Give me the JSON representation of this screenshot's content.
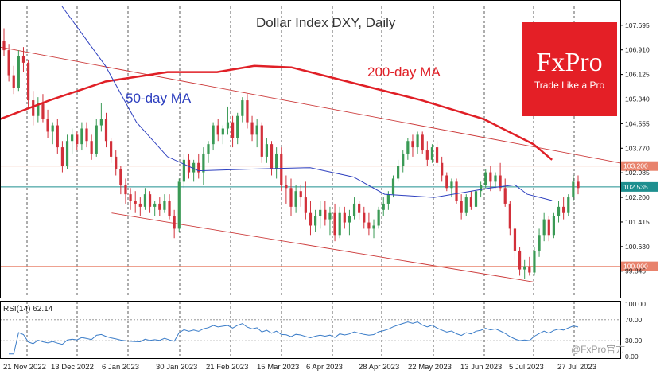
{
  "chart_data": [
    {
      "type": "candlestick",
      "title": "Dollar Index DXY, Daily",
      "ylim": [
        99.0,
        108.3
      ],
      "y_ticks": [
        "107.695",
        "106.910",
        "106.125",
        "105.340",
        "104.555",
        "103.770",
        "102.985",
        "102.200",
        "101.415",
        "100.630",
        "99.845"
      ],
      "x_ticks": [
        "21 Nov 2022",
        "13 Dec 2022",
        "6 Jan 2023",
        "30 Jan 2023",
        "21 Feb 2023",
        "15 Mar 2023",
        "6 Apr 2023",
        "28 Apr 2023",
        "22 May 2023",
        "13 Jun 2023",
        "5 Jul 2023",
        "27 Jul 2023"
      ],
      "candles": [
        [
          107.2,
          107.6,
          106.7,
          106.9
        ],
        [
          106.9,
          107.1,
          105.9,
          106.1
        ],
        [
          106.1,
          106.4,
          105.5,
          105.7
        ],
        [
          105.7,
          106.9,
          105.6,
          106.7
        ],
        [
          106.7,
          107.0,
          106.2,
          106.5
        ],
        [
          106.5,
          106.6,
          105.1,
          105.3
        ],
        [
          105.3,
          105.6,
          104.5,
          104.8
        ],
        [
          104.8,
          105.4,
          104.6,
          105.2
        ],
        [
          105.2,
          105.5,
          104.6,
          104.7
        ],
        [
          104.7,
          105.0,
          104.1,
          104.3
        ],
        [
          104.3,
          104.6,
          103.9,
          104.5
        ],
        [
          104.5,
          104.7,
          103.6,
          103.8
        ],
        [
          103.8,
          104.0,
          103.0,
          103.2
        ],
        [
          103.2,
          104.2,
          103.1,
          104.0
        ],
        [
          104.0,
          104.4,
          103.6,
          104.2
        ],
        [
          104.2,
          104.3,
          103.7,
          103.9
        ],
        [
          103.9,
          104.6,
          103.7,
          104.4
        ],
        [
          104.4,
          104.6,
          103.8,
          104.0
        ],
        [
          104.0,
          104.2,
          103.4,
          103.6
        ],
        [
          103.6,
          104.7,
          103.5,
          104.5
        ],
        [
          104.5,
          105.2,
          104.3,
          104.7
        ],
        [
          104.7,
          104.9,
          103.8,
          104.0
        ],
        [
          104.0,
          104.1,
          103.3,
          103.5
        ],
        [
          103.5,
          103.7,
          102.9,
          103.1
        ],
        [
          103.1,
          103.2,
          102.3,
          102.6
        ],
        [
          102.6,
          102.8,
          102.0,
          102.3
        ],
        [
          102.3,
          102.5,
          101.8,
          102.1
        ],
        [
          102.1,
          102.4,
          101.7,
          102.0
        ],
        [
          102.0,
          102.2,
          101.6,
          101.9
        ],
        [
          101.9,
          102.5,
          101.8,
          102.3
        ],
        [
          102.3,
          102.4,
          101.7,
          101.9
        ],
        [
          101.9,
          102.1,
          101.6,
          102.0
        ],
        [
          102.0,
          102.2,
          101.6,
          101.8
        ],
        [
          101.8,
          102.3,
          101.7,
          102.1
        ],
        [
          102.1,
          102.3,
          101.5,
          101.6
        ],
        [
          101.6,
          101.8,
          100.9,
          101.2
        ],
        [
          101.2,
          102.8,
          101.1,
          102.7
        ],
        [
          102.7,
          103.6,
          102.5,
          103.4
        ],
        [
          103.4,
          103.6,
          102.8,
          103.0
        ],
        [
          103.0,
          103.4,
          102.7,
          103.3
        ],
        [
          103.3,
          103.6,
          102.8,
          103.0
        ],
        [
          103.0,
          103.8,
          102.6,
          103.6
        ],
        [
          103.6,
          104.0,
          103.3,
          103.9
        ],
        [
          103.9,
          104.6,
          103.7,
          104.5
        ],
        [
          104.5,
          104.7,
          104.0,
          104.2
        ],
        [
          104.2,
          104.5,
          103.9,
          104.4
        ],
        [
          104.4,
          105.1,
          104.2,
          104.6
        ],
        [
          104.6,
          104.8,
          103.8,
          104.1
        ],
        [
          104.1,
          104.9,
          103.9,
          104.8
        ],
        [
          104.8,
          105.4,
          104.6,
          105.3
        ],
        [
          105.3,
          105.5,
          104.4,
          104.6
        ],
        [
          104.6,
          104.8,
          104.0,
          104.2
        ],
        [
          104.2,
          104.7,
          103.8,
          104.5
        ],
        [
          104.5,
          104.6,
          103.3,
          103.5
        ],
        [
          103.5,
          104.1,
          103.3,
          103.9
        ],
        [
          103.9,
          104.0,
          102.9,
          103.1
        ],
        [
          103.1,
          103.8,
          102.8,
          103.6
        ],
        [
          103.6,
          103.8,
          102.4,
          102.6
        ],
        [
          102.6,
          102.9,
          102.0,
          102.5
        ],
        [
          102.5,
          102.8,
          101.6,
          101.9
        ],
        [
          101.9,
          102.6,
          101.7,
          102.4
        ],
        [
          102.4,
          102.6,
          101.9,
          102.2
        ],
        [
          102.2,
          102.7,
          101.5,
          101.7
        ],
        [
          101.7,
          102.1,
          101.0,
          101.3
        ],
        [
          101.3,
          101.8,
          101.1,
          101.6
        ],
        [
          101.6,
          102.1,
          101.2,
          101.8
        ],
        [
          101.8,
          102.1,
          101.3,
          101.5
        ],
        [
          101.5,
          101.9,
          101.0,
          101.7
        ],
        [
          101.7,
          102.0,
          100.8,
          101.0
        ],
        [
          101.0,
          101.9,
          100.9,
          101.7
        ],
        [
          101.7,
          101.9,
          101.2,
          101.4
        ],
        [
          101.4,
          101.8,
          101.0,
          101.6
        ],
        [
          101.6,
          102.2,
          101.5,
          102.0
        ],
        [
          102.0,
          102.1,
          101.5,
          101.7
        ],
        [
          101.7,
          101.9,
          101.2,
          101.4
        ],
        [
          101.4,
          101.7,
          101.0,
          101.2
        ],
        [
          101.2,
          101.5,
          100.9,
          101.3
        ],
        [
          101.3,
          101.9,
          101.2,
          101.8
        ],
        [
          101.8,
          102.2,
          101.6,
          102.0
        ],
        [
          102.0,
          102.4,
          101.8,
          102.3
        ],
        [
          102.3,
          102.9,
          102.2,
          102.8
        ],
        [
          102.8,
          103.4,
          102.7,
          103.2
        ],
        [
          103.2,
          103.7,
          103.0,
          103.6
        ],
        [
          103.6,
          104.1,
          103.4,
          104.0
        ],
        [
          104.0,
          104.2,
          103.5,
          103.8
        ],
        [
          103.8,
          104.3,
          103.6,
          104.2
        ],
        [
          104.2,
          104.3,
          103.6,
          103.7
        ],
        [
          103.7,
          104.0,
          103.2,
          103.4
        ],
        [
          103.4,
          103.9,
          103.3,
          103.8
        ],
        [
          103.8,
          104.0,
          103.2,
          103.3
        ],
        [
          103.3,
          103.5,
          102.7,
          102.9
        ],
        [
          102.9,
          103.0,
          102.4,
          102.5
        ],
        [
          102.5,
          102.8,
          102.2,
          102.7
        ],
        [
          102.7,
          102.8,
          102.0,
          102.1
        ],
        [
          102.1,
          102.3,
          101.5,
          101.7
        ],
        [
          101.7,
          102.3,
          101.6,
          102.2
        ],
        [
          102.2,
          102.4,
          101.8,
          101.9
        ],
        [
          101.9,
          102.5,
          101.8,
          102.4
        ],
        [
          102.4,
          102.7,
          102.2,
          102.6
        ],
        [
          102.6,
          103.1,
          102.5,
          103.0
        ],
        [
          103.0,
          103.2,
          102.4,
          102.7
        ],
        [
          102.7,
          103.0,
          102.5,
          102.9
        ],
        [
          102.9,
          103.3,
          102.4,
          102.5
        ],
        [
          102.5,
          102.8,
          101.9,
          102.0
        ],
        [
          102.0,
          102.1,
          101.0,
          101.2
        ],
        [
          101.2,
          101.3,
          100.2,
          100.5
        ],
        [
          100.5,
          100.6,
          99.7,
          99.9
        ],
        [
          99.9,
          100.2,
          99.6,
          100.0
        ],
        [
          100.0,
          100.3,
          99.7,
          99.8
        ],
        [
          99.8,
          100.6,
          99.7,
          100.5
        ],
        [
          100.5,
          101.2,
          100.3,
          101.0
        ],
        [
          101.0,
          101.7,
          100.8,
          101.5
        ],
        [
          101.5,
          101.6,
          100.8,
          101.0
        ],
        [
          101.0,
          101.7,
          100.9,
          101.6
        ],
        [
          101.6,
          102.1,
          101.4,
          101.9
        ],
        [
          101.9,
          102.2,
          101.5,
          101.7
        ],
        [
          101.7,
          102.3,
          101.6,
          102.2
        ],
        [
          102.2,
          102.9,
          102.1,
          102.7
        ],
        [
          102.7,
          102.9,
          102.3,
          102.5
        ]
      ],
      "ma200": [
        [
          0,
          104.7
        ],
        [
          0.08,
          105.3
        ],
        [
          0.17,
          105.9
        ],
        [
          0.27,
          106.2
        ],
        [
          0.35,
          106.2
        ],
        [
          0.41,
          106.4
        ],
        [
          0.47,
          106.35
        ],
        [
          0.56,
          105.9
        ],
        [
          0.68,
          105.3
        ],
        [
          0.78,
          104.7
        ],
        [
          0.86,
          103.9
        ],
        [
          0.89,
          103.4
        ]
      ],
      "ma50": [
        [
          0.1,
          108.3
        ],
        [
          0.17,
          106.4
        ],
        [
          0.22,
          104.6
        ],
        [
          0.27,
          103.5
        ],
        [
          0.32,
          103.05
        ],
        [
          0.4,
          103.1
        ],
        [
          0.5,
          103.15
        ],
        [
          0.57,
          102.85
        ],
        [
          0.62,
          102.3
        ],
        [
          0.7,
          102.2
        ],
        [
          0.79,
          102.5
        ],
        [
          0.83,
          102.6
        ],
        [
          0.85,
          102.3
        ],
        [
          0.89,
          102.1
        ]
      ],
      "channel_upper": [
        [
          0,
          107.0
        ],
        [
          1,
          103.3
        ]
      ],
      "channel_lower": [
        [
          0.18,
          101.7
        ],
        [
          0.86,
          99.5
        ]
      ],
      "levels": [
        {
          "value": 103.2,
          "label": "103.200",
          "color": "#e8826c"
        },
        {
          "value": 102.535,
          "label": "102.535",
          "color": "#1e8f8f"
        },
        {
          "value": 100.0,
          "label": "100.000",
          "color": "#e8826c"
        }
      ],
      "annotations": [
        "200-day MA",
        "50-day MA"
      ],
      "colors": {
        "up": "#3a9a55",
        "down": "#d2303a",
        "ma200": "#e01f26",
        "ma50": "#2d3fbf",
        "channel": "#cc3a3a"
      }
    },
    {
      "type": "line",
      "title": "RSI(14) 62.14",
      "ylim": [
        0,
        100
      ],
      "y_ticks": [
        "100.00",
        "70.00",
        "30.00",
        "0.00"
      ],
      "color": "#3a7cc8"
    }
  ],
  "logo": {
    "main": "FxPro",
    "sub": "Trade Like a Pro"
  },
  "watermark": "@FxPro官方"
}
